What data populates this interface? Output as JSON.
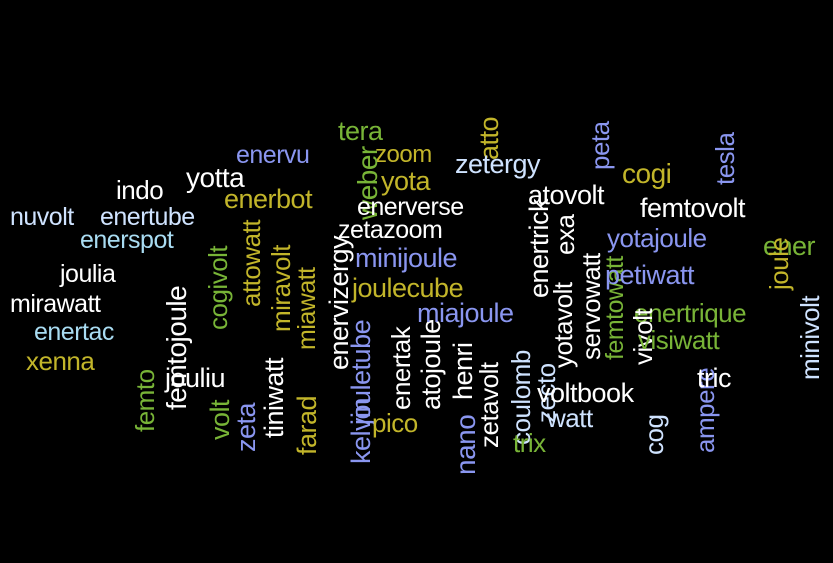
{
  "palette": {
    "background": "#000000",
    "white": "#ffffff",
    "light_blue": "#cfe3ff",
    "periwinkle": "#8a96f0",
    "cyan": "#a9dcf2",
    "green": "#78b437",
    "olive": "#c2b52a"
  },
  "words": [
    {
      "text": "nuvolt",
      "color": "light_blue"
    },
    {
      "text": "enertube",
      "color": "light_blue"
    },
    {
      "text": "enerspot",
      "color": "cyan"
    },
    {
      "text": "indo",
      "color": "white"
    },
    {
      "text": "yotta",
      "color": "white"
    },
    {
      "text": "enervu",
      "color": "periwinkle"
    },
    {
      "text": "tera",
      "color": "green"
    },
    {
      "text": "atto",
      "color": "olive"
    },
    {
      "text": "zoom",
      "color": "olive"
    },
    {
      "text": "zetergy",
      "color": "light_blue"
    },
    {
      "text": "peta",
      "color": "periwinkle"
    },
    {
      "text": "cogi",
      "color": "olive"
    },
    {
      "text": "tesla",
      "color": "periwinkle"
    },
    {
      "text": "enerbot",
      "color": "olive"
    },
    {
      "text": "yota",
      "color": "olive"
    },
    {
      "text": "weber",
      "color": "green"
    },
    {
      "text": "enerverse",
      "color": "white"
    },
    {
      "text": "enertrick",
      "color": "white"
    },
    {
      "text": "atovolt",
      "color": "white"
    },
    {
      "text": "femtovolt",
      "color": "white"
    },
    {
      "text": "joulia",
      "color": "white"
    },
    {
      "text": "attowatt",
      "color": "olive"
    },
    {
      "text": "miravolt",
      "color": "olive"
    },
    {
      "text": "enervizergy",
      "color": "white"
    },
    {
      "text": "zetazoom",
      "color": "white"
    },
    {
      "text": "minijoule",
      "color": "periwinkle"
    },
    {
      "text": "exa",
      "color": "white"
    },
    {
      "text": "yotajoule",
      "color": "periwinkle"
    },
    {
      "text": "ener",
      "color": "green"
    },
    {
      "text": "mirawatt",
      "color": "white"
    },
    {
      "text": "femtojoule",
      "color": "white"
    },
    {
      "text": "cogivolt",
      "color": "green"
    },
    {
      "text": "jouletube",
      "color": "periwinkle"
    },
    {
      "text": "joulecube",
      "color": "olive"
    },
    {
      "text": "femtowatt",
      "color": "green"
    },
    {
      "text": "petiwatt",
      "color": "periwinkle"
    },
    {
      "text": "joule",
      "color": "olive"
    },
    {
      "text": "minivolt",
      "color": "light_blue"
    },
    {
      "text": "enertac",
      "color": "cyan"
    },
    {
      "text": "xenna",
      "color": "olive"
    },
    {
      "text": "miawatt",
      "color": "olive"
    },
    {
      "text": "enertak",
      "color": "white"
    },
    {
      "text": "atojoule",
      "color": "white"
    },
    {
      "text": "miajoule",
      "color": "periwinkle"
    },
    {
      "text": "yotavolt",
      "color": "white"
    },
    {
      "text": "servowatt",
      "color": "white"
    },
    {
      "text": "enertrique",
      "color": "green"
    },
    {
      "text": "vivolt",
      "color": "white"
    },
    {
      "text": "visiwatt",
      "color": "green"
    },
    {
      "text": "femto",
      "color": "green"
    },
    {
      "text": "volt",
      "color": "green"
    },
    {
      "text": "jouliu",
      "color": "white"
    },
    {
      "text": "zeta",
      "color": "periwinkle"
    },
    {
      "text": "tiniwatt",
      "color": "white"
    },
    {
      "text": "farad",
      "color": "olive"
    },
    {
      "text": "kelvin",
      "color": "periwinkle"
    },
    {
      "text": "henri",
      "color": "white"
    },
    {
      "text": "nano",
      "color": "periwinkle"
    },
    {
      "text": "zetavolt",
      "color": "white"
    },
    {
      "text": "coulomb",
      "color": "light_blue"
    },
    {
      "text": "zecto",
      "color": "light_blue"
    },
    {
      "text": "voltbook",
      "color": "white"
    },
    {
      "text": "ampere",
      "color": "periwinkle"
    },
    {
      "text": "tric",
      "color": "white"
    },
    {
      "text": "pico",
      "color": "olive"
    },
    {
      "text": "trix",
      "color": "green"
    },
    {
      "text": "watt",
      "color": "light_blue"
    },
    {
      "text": "cog",
      "color": "light_blue"
    }
  ]
}
